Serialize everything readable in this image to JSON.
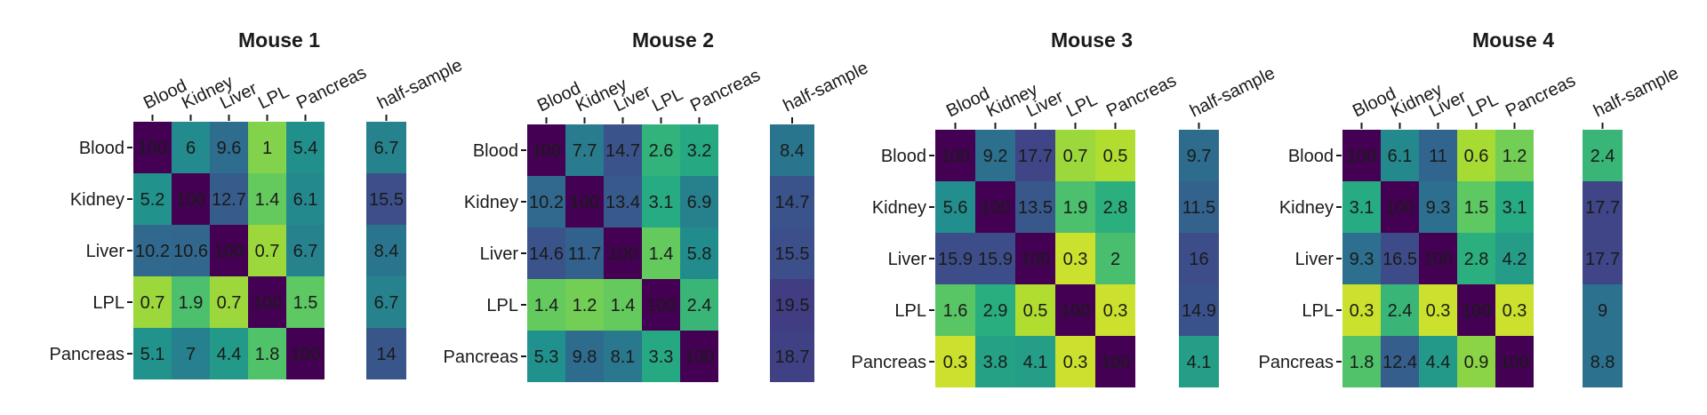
{
  "chart_data": [
    {
      "type": "heatmap",
      "title": "Mouse 1",
      "rows": [
        "Blood",
        "Kidney",
        "Liver",
        "LPL",
        "Pancreas"
      ],
      "columns": [
        "Blood",
        "Kidney",
        "Liver",
        "LPL",
        "Pancreas"
      ],
      "values": [
        [
          "100",
          "6",
          "9.6",
          "1",
          "5.4"
        ],
        [
          "5.2",
          "100",
          "12.7",
          "1.4",
          "6.1"
        ],
        [
          "10.2",
          "10.6",
          "100",
          "0.7",
          "6.7"
        ],
        [
          "0.7",
          "1.9",
          "0.7",
          "100",
          "1.5"
        ],
        [
          "5.1",
          "7",
          "4.4",
          "1.8",
          "100"
        ]
      ],
      "side_label": "half-sample",
      "side_values": [
        "6.7",
        "15.5",
        "8.4",
        "6.7",
        "14"
      ]
    },
    {
      "type": "heatmap",
      "title": "Mouse 2",
      "rows": [
        "Blood",
        "Kidney",
        "Liver",
        "LPL",
        "Pancreas"
      ],
      "columns": [
        "Blood",
        "Kidney",
        "Liver",
        "LPL",
        "Pancreas"
      ],
      "values": [
        [
          "100",
          "7.7",
          "14.7",
          "2.6",
          "3.2"
        ],
        [
          "10.2",
          "100",
          "13.4",
          "3.1",
          "6.9"
        ],
        [
          "14.6",
          "11.7",
          "100",
          "1.4",
          "5.8"
        ],
        [
          "1.4",
          "1.2",
          "1.4",
          "100",
          "2.4"
        ],
        [
          "5.3",
          "9.8",
          "8.1",
          "3.3",
          "100"
        ]
      ],
      "side_label": "half-sample",
      "side_values": [
        "8.4",
        "14.7",
        "15.5",
        "19.5",
        "18.7"
      ]
    },
    {
      "type": "heatmap",
      "title": "Mouse 3",
      "rows": [
        "Blood",
        "Kidney",
        "Liver",
        "LPL",
        "Pancreas"
      ],
      "columns": [
        "Blood",
        "Kidney",
        "Liver",
        "LPL",
        "Pancreas"
      ],
      "values": [
        [
          "100",
          "9.2",
          "17.7",
          "0.7",
          "0.5"
        ],
        [
          "5.6",
          "100",
          "13.5",
          "1.9",
          "2.8"
        ],
        [
          "15.9",
          "15.9",
          "100",
          "0.3",
          "2"
        ],
        [
          "1.6",
          "2.9",
          "0.5",
          "100",
          "0.3"
        ],
        [
          "0.3",
          "3.8",
          "4.1",
          "0.3",
          "100"
        ]
      ],
      "side_label": "half-sample",
      "side_values": [
        "9.7",
        "11.5",
        "16",
        "14.9",
        "4.1"
      ]
    },
    {
      "type": "heatmap",
      "title": "Mouse 4",
      "rows": [
        "Blood",
        "Kidney",
        "Liver",
        "LPL",
        "Pancreas"
      ],
      "columns": [
        "Blood",
        "Kidney",
        "Liver",
        "LPL",
        "Pancreas"
      ],
      "values": [
        [
          "100",
          "6.1",
          "11",
          "0.6",
          "1.2"
        ],
        [
          "3.1",
          "100",
          "9.3",
          "1.5",
          "3.1"
        ],
        [
          "9.3",
          "16.5",
          "100",
          "2.8",
          "4.2"
        ],
        [
          "0.3",
          "2.4",
          "0.3",
          "100",
          "0.3"
        ],
        [
          "1.8",
          "12.4",
          "4.4",
          "0.9",
          "100"
        ]
      ],
      "side_label": "half-sample",
      "side_values": [
        "2.4",
        "17.7",
        "17.7",
        "9",
        "8.8"
      ]
    }
  ]
}
